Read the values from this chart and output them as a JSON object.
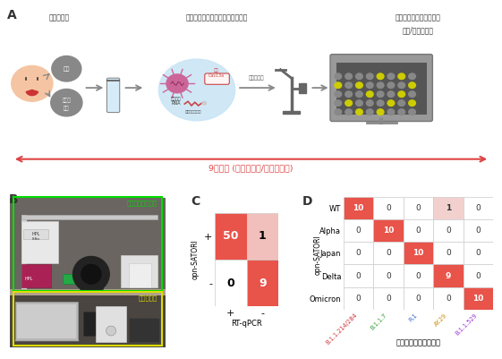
{
  "section_A": {
    "title_left": "検体の採取",
    "title_middle": "自動ロボットによるサンプル調整",
    "title_right_1": "ウイルスの自動個数定量",
    "title_right_2": "陽性/変異株判定",
    "arrow_label": "9分以内 (全自動陽性/変異株判定)",
    "sub_label1": "唾液",
    "sub_label2": "のどの\n粘膜",
    "cas_label": "新種\nCas13a",
    "rna_label": "ウイルス\nRNA",
    "reporter_label": "蛍光レポーター",
    "micro_label": "自動顕微鏡"
  },
  "section_B": {
    "green_label": "自動分注ロボット",
    "yellow_label": "蛍光顕微鏡"
  },
  "section_C": {
    "ylabel": "opn-SATORI",
    "xlabel": "RT-qPCR",
    "row_labels": [
      "+",
      "-"
    ],
    "col_labels": [
      "+",
      "-"
    ],
    "values": [
      [
        50,
        1
      ],
      [
        0,
        9
      ]
    ],
    "cell_colors": [
      [
        "#e8534a",
        "#f2c0bc"
      ],
      [
        "#ffffff",
        "#e8534a"
      ]
    ],
    "text_colors": [
      [
        "white",
        "black"
      ],
      [
        "black",
        "white"
      ]
    ]
  },
  "section_D": {
    "ylabel": "opn-SATORI",
    "xlabel": "全ゲノムシークエンス",
    "row_labels": [
      "WT",
      "Alpha",
      "Japan",
      "Delta",
      "Omicron"
    ],
    "col_labels": [
      "B.1.1.214/284",
      "B.1.1.7",
      "R.1",
      "AY.29",
      "B.1.1.529"
    ],
    "col_label_colors": [
      "#cc3333",
      "#339933",
      "#3366cc",
      "#cc8800",
      "#9933cc"
    ],
    "values": [
      [
        10,
        0,
        0,
        1,
        0
      ],
      [
        0,
        10,
        0,
        0,
        0
      ],
      [
        0,
        0,
        10,
        0,
        0
      ],
      [
        0,
        0,
        0,
        9,
        0
      ],
      [
        0,
        0,
        0,
        0,
        10
      ]
    ],
    "cell_colors": [
      [
        "#e8534a",
        "#ffffff",
        "#ffffff",
        "#f2d0ce",
        "#ffffff"
      ],
      [
        "#ffffff",
        "#e8534a",
        "#ffffff",
        "#ffffff",
        "#ffffff"
      ],
      [
        "#ffffff",
        "#ffffff",
        "#e8534a",
        "#ffffff",
        "#ffffff"
      ],
      [
        "#ffffff",
        "#ffffff",
        "#ffffff",
        "#e8534a",
        "#ffffff"
      ],
      [
        "#ffffff",
        "#ffffff",
        "#ffffff",
        "#ffffff",
        "#e8534a"
      ]
    ]
  },
  "bg_color": "#ffffff"
}
